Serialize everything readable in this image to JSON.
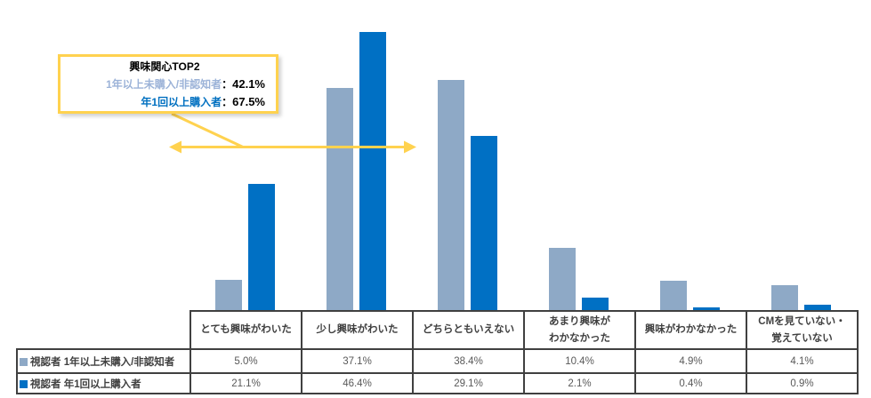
{
  "chart_data": {
    "type": "bar",
    "categories": [
      "とても興味がわいた",
      "少し興味がわいた",
      "どちらともいえない",
      "あまり興味が\nわかなかった",
      "興味がわかなかった",
      "CMを見ていない・\n覚えていない"
    ],
    "series": [
      {
        "name": "視認者 1年以上未購入/非認知者",
        "color": "#8EA9C6",
        "values": [
          5.0,
          37.1,
          38.4,
          10.4,
          4.9,
          4.1
        ]
      },
      {
        "name": "視認者 年1回以上購入者",
        "color": "#0070C4",
        "values": [
          21.1,
          46.4,
          29.1,
          2.1,
          0.4,
          0.9
        ]
      }
    ],
    "value_suffix": "%",
    "ylim": [
      0,
      50
    ],
    "grid": false,
    "legend_position": "table-left-column"
  },
  "callout": {
    "title": "興味関心TOP2",
    "lines": [
      {
        "label": "1年以上未購入/非認知者",
        "separator": "：",
        "value": "42.1%"
      },
      {
        "label": "年1回以上購入者",
        "separator": "：",
        "value": "67.5%"
      }
    ]
  },
  "table": {
    "rows": [
      {
        "legend": "視認者 1年以上未購入/非認知者",
        "swatch_color": "#8EA9C6",
        "values": [
          "5.0%",
          "37.1%",
          "38.4%",
          "10.4%",
          "4.9%",
          "4.1%"
        ]
      },
      {
        "legend": "視認者 年1回以上購入者",
        "swatch_color": "#0070C4",
        "values": [
          "21.1%",
          "46.4%",
          "29.1%",
          "2.1%",
          "0.4%",
          "0.9%"
        ]
      }
    ]
  },
  "colors": {
    "series1": "#8EA9C6",
    "series2": "#0070C4",
    "gold_accent": "#FFD24F",
    "table_border": "#404040",
    "category_text": "#404040",
    "value_text": "#595959",
    "callout_label_light": "#9CB3D8",
    "callout_label_dark": "#0070C0"
  }
}
